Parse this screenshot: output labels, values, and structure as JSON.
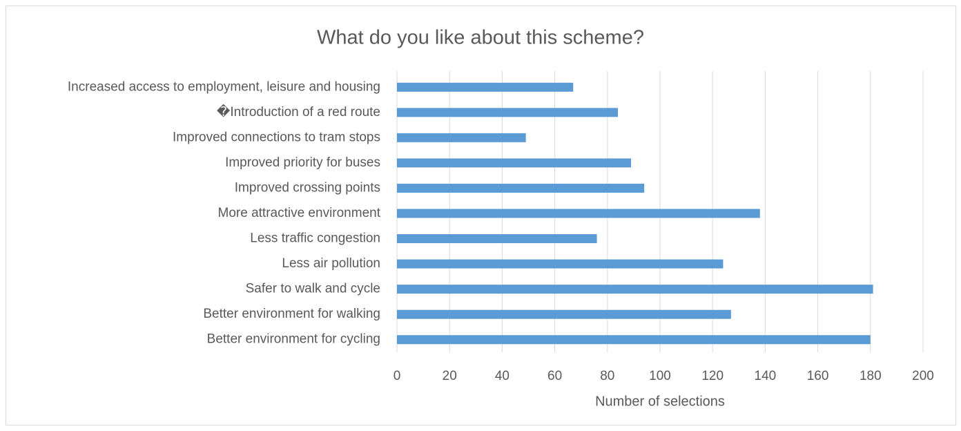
{
  "chart_data": {
    "type": "barh",
    "title": "What do you like about this scheme?",
    "x_label": "Number of selections",
    "categories": [
      "Increased access to employment, leisure and housing",
      "�Introduction of a red route",
      "Improved connections to tram stops",
      "Improved priority for buses",
      "Improved crossing points",
      "More attractive environment",
      "Less traffic congestion",
      "Less air pollution",
      "Safer to walk and cycle",
      "Better environment for walking",
      "Better environment for cycling"
    ],
    "values": [
      67,
      84,
      49,
      89,
      94,
      138,
      76,
      124,
      181,
      127,
      180
    ],
    "color": "#5b9bd5",
    "xlim": [
      0,
      200
    ],
    "xticks": [
      0,
      20,
      40,
      60,
      80,
      100,
      120,
      140,
      160,
      180,
      200
    ],
    "grid": true
  }
}
